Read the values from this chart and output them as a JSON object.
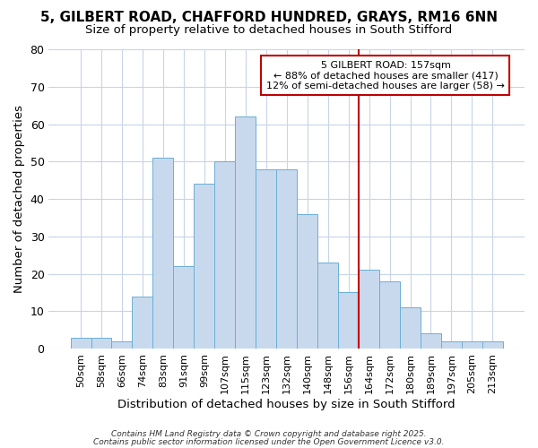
{
  "title_line1": "5, GILBERT ROAD, CHAFFORD HUNDRED, GRAYS, RM16 6NN",
  "title_line2": "Size of property relative to detached houses in South Stifford",
  "xlabel": "Distribution of detached houses by size in South Stifford",
  "ylabel": "Number of detached properties",
  "categories": [
    "50sqm",
    "58sqm",
    "66sqm",
    "74sqm",
    "83sqm",
    "91sqm",
    "99sqm",
    "107sqm",
    "115sqm",
    "123sqm",
    "132sqm",
    "140sqm",
    "148sqm",
    "156sqm",
    "164sqm",
    "172sqm",
    "180sqm",
    "189sqm",
    "197sqm",
    "205sqm",
    "213sqm"
  ],
  "values": [
    3,
    3,
    2,
    14,
    51,
    22,
    44,
    50,
    62,
    48,
    48,
    36,
    23,
    15,
    21,
    18,
    11,
    4,
    2,
    2,
    2
  ],
  "bar_color": "#c9d9ed",
  "bar_edge_color": "#6baed6",
  "vline_color": "#c00000",
  "vline_x": 13.5,
  "annotation_text_line1": "5 GILBERT ROAD: 157sqm",
  "annotation_text_line2": "← 88% of detached houses are smaller (417)",
  "annotation_text_line3": "12% of semi-detached houses are larger (58) →",
  "annotation_box_color": "#ffffff",
  "annotation_box_edge": "#c00000",
  "ylim": [
    0,
    80
  ],
  "yticks": [
    0,
    10,
    20,
    30,
    40,
    50,
    60,
    70,
    80
  ],
  "figure_bg": "#ffffff",
  "axes_bg": "#ffffff",
  "grid_color": "#c8d4e8",
  "footer_line1": "Contains HM Land Registry data © Crown copyright and database right 2025.",
  "footer_line2": "Contains public sector information licensed under the Open Government Licence v3.0."
}
